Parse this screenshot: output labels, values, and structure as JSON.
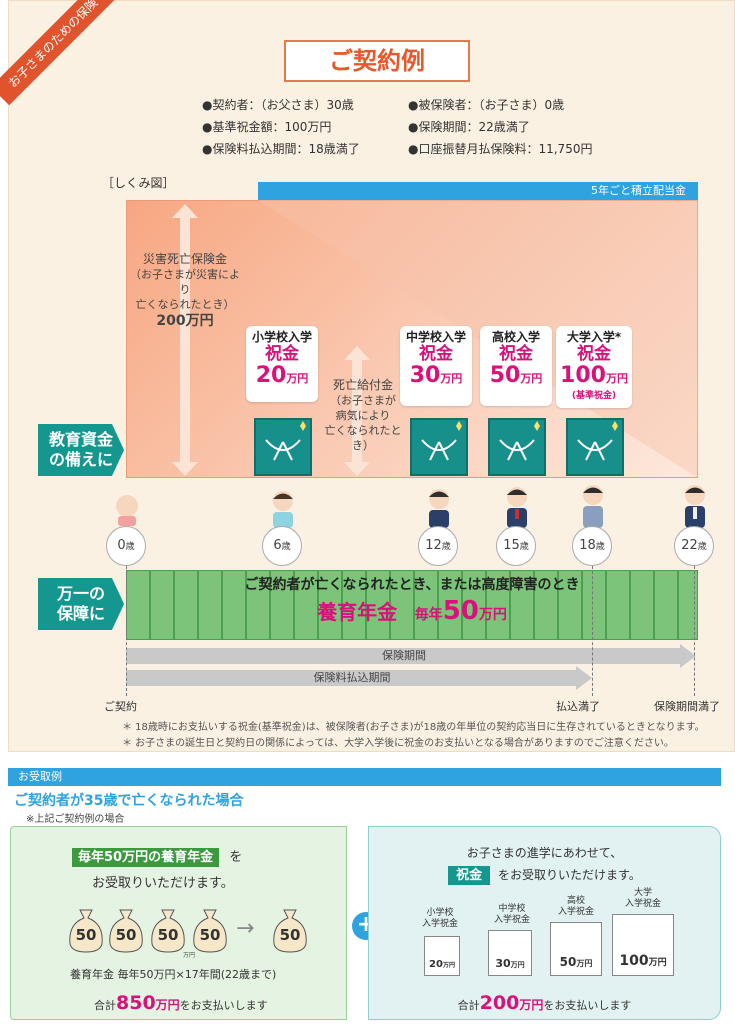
{
  "ribbon": "お子さまのための保険",
  "title": "ご契約例",
  "conditions": {
    "c1": "●契約者：（お父さま）30歳",
    "c2": "●被保険者：（お子さま）0歳",
    "c3": "●基準祝金額：100万円",
    "c4": "●保険期間：22歳満了",
    "c5": "●保険料払込期間：18歳満了",
    "c6": "●口座振替月払保険料：11,750円"
  },
  "shikumi": "［しくみ図］",
  "blue_bar": "5年ごと積立配当金",
  "disaster": {
    "t1": "災害死亡保険金",
    "t2": "（お子さまが災害により",
    "t3": "亡くなられたとき）",
    "amount": "200万円"
  },
  "death_benefit": {
    "t1": "死亡給付金",
    "t2": "（お子さまが",
    "t3": "病気により",
    "t4": "亡くなられたとき）"
  },
  "gifts": [
    {
      "event": "小学校入学",
      "label": "祝金",
      "value": "20",
      "unit": "万円",
      "note": ""
    },
    {
      "event": "中学校入学",
      "label": "祝金",
      "value": "30",
      "unit": "万円",
      "note": ""
    },
    {
      "event": "高校入学",
      "label": "祝金",
      "value": "50",
      "unit": "万円",
      "note": ""
    },
    {
      "event": "大学入学*",
      "label": "祝金",
      "value": "100",
      "unit": "万円",
      "note": "(基準祝金)"
    }
  ],
  "side_edu": {
    "l1": "教育資金",
    "l2": "の備えに"
  },
  "side_risk": {
    "l1": "万一の",
    "l2": "保障に"
  },
  "ages": [
    "0",
    "6",
    "12",
    "15",
    "18",
    "22"
  ],
  "age_unit": "歳",
  "stripe_text1": "ご契約者が亡くなられたとき、または高度障害のとき",
  "stripe_pension": "養育年金",
  "stripe_each": "毎年",
  "stripe_amount": "50",
  "stripe_unit": "万円",
  "bar_insurance": "保険期間",
  "bar_payment": "保険料払込期間",
  "label_start": "ご契約",
  "label_payend": "払込満了",
  "label_end": "保険期間満了",
  "footnote1": "＊ 18歳時にお支払いする祝金(基準祝金)は、被保険者(お子さま)が18歳の年単位の契約応当日に生存されているときとなります。",
  "footnote2": "＊ お子さまの誕生日と契約日の関係によっては、大学入学後に祝金のお支払いとなる場合がありますのでご注意ください。",
  "example_head": "お受取例",
  "example_title": "ご契約者が35歳で亡くなられた場合",
  "example_sub": "※上記ご契約例の場合",
  "left_panel": {
    "badge": "毎年50万円の養育年金",
    "wo": "を",
    "receive": "お受取りいただけます。",
    "bags": [
      "50",
      "50",
      "50",
      "50"
    ],
    "bag_final": "50",
    "bag_unit": "万円",
    "calc": "養育年金  毎年50万円×17年間(22歳まで)",
    "total_pre": "合計",
    "total": "850",
    "total_unit": "万円",
    "total_post": "をお支払いします"
  },
  "right_panel": {
    "l1": "お子さまの進学にあわせて、",
    "badge": "祝金",
    "l2": "をお受取りいただけます。",
    "envs": [
      {
        "t1": "小学校",
        "t2": "入学祝金",
        "val": "20",
        "unit": "万円"
      },
      {
        "t1": "中学校",
        "t2": "入学祝金",
        "val": "30",
        "unit": "万円"
      },
      {
        "t1": "高校",
        "t2": "入学祝金",
        "val": "50",
        "unit": "万円"
      },
      {
        "t1": "大学",
        "t2": "入学祝金",
        "val": "100",
        "unit": "万円"
      }
    ],
    "total_pre": "合計",
    "total": "200",
    "total_unit": "万円",
    "total_post": "をお支払いします"
  },
  "colors": {
    "accent": "#e8582a",
    "magenta": "#d8127a",
    "teal": "#14978f",
    "blue": "#2ea3df",
    "green": "#7cc47a"
  }
}
